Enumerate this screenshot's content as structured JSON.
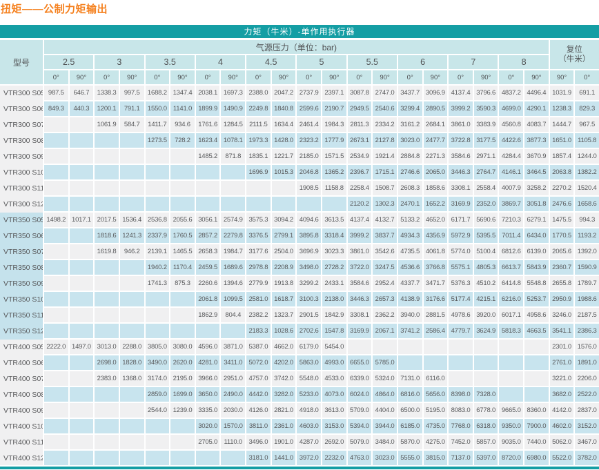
{
  "title": "扭矩——公制力矩输出",
  "colors": {
    "accent_teal": "#149EA4",
    "header_light_teal": "#C8E6E9",
    "stripe_blue": "#C8E4EE",
    "stripe_gray": "#F0F0F1",
    "title_orange": "#F5811F",
    "text_gray": "#57585A"
  },
  "table": {
    "banner": "力矩（牛米）-单作用执行器",
    "model_header": "型号",
    "pressure_header": "气源压力（单位：bar)",
    "reset_header_line1": "复位",
    "reset_header_line2": "（牛米）",
    "pressures": [
      "2.5",
      "3",
      "3.5",
      "4",
      "4.5",
      "5",
      "5.5",
      "6",
      "7",
      "8"
    ],
    "degree_pair": [
      "0°",
      "90°"
    ],
    "reset_degrees": [
      "90°",
      "0°"
    ],
    "rows": [
      {
        "model": "VTR300 S05",
        "values": [
          "987.5",
          "646.7",
          "1338.3",
          "997.5",
          "1688.2",
          "1347.4",
          "2038.1",
          "1697.3",
          "2388.0",
          "2047.2",
          "2737.9",
          "2397.1",
          "3087.8",
          "2747.0",
          "3437.7",
          "3096.9",
          "4137.4",
          "3796.6",
          "4837.2",
          "4496.4",
          "1031.9",
          "691.1"
        ]
      },
      {
        "model": "VTR300 S06",
        "values": [
          "849.3",
          "440.3",
          "1200.1",
          "791.1",
          "1550.0",
          "1141.0",
          "1899.9",
          "1490.9",
          "2249.8",
          "1840.8",
          "2599.6",
          "2190.7",
          "2949.5",
          "2540.6",
          "3299.4",
          "2890.5",
          "3999.2",
          "3590.3",
          "4699.0",
          "4290.1",
          "1238.3",
          "829.3"
        ]
      },
      {
        "model": "VTR300 S07",
        "values": [
          "",
          "",
          "1061.9",
          "584.7",
          "1411.7",
          "934.6",
          "1761.6",
          "1284.5",
          "2111.5",
          "1634.4",
          "2461.4",
          "1984.3",
          "2811.3",
          "2334.2",
          "3161.2",
          "2684.1",
          "3861.0",
          "3383.9",
          "4560.8",
          "4083.7",
          "1444.7",
          "967.5"
        ]
      },
      {
        "model": "VTR300 S08",
        "values": [
          "",
          "",
          "",
          "",
          "1273.5",
          "728.2",
          "1623.4",
          "1078.1",
          "1973.3",
          "1428.0",
          "2323.2",
          "1777.9",
          "2673.1",
          "2127.8",
          "3023.0",
          "2477.7",
          "3722.8",
          "3177.5",
          "4422.6",
          "3877.3",
          "1651.0",
          "1105.8"
        ]
      },
      {
        "model": "VTR300 S09",
        "values": [
          "",
          "",
          "",
          "",
          "",
          "",
          "1485.2",
          "871.8",
          "1835.1",
          "1221.7",
          "2185.0",
          "1571.5",
          "2534.9",
          "1921.4",
          "2884.8",
          "2271.3",
          "3584.6",
          "2971.1",
          "4284.4",
          "3670.9",
          "1857.4",
          "1244.0"
        ]
      },
      {
        "model": "VTR300 S10",
        "values": [
          "",
          "",
          "",
          "",
          "",
          "",
          "",
          "",
          "1696.9",
          "1015.3",
          "2046.8",
          "1365.2",
          "2396.7",
          "1715.1",
          "2746.6",
          "2065.0",
          "3446.3",
          "2764.7",
          "4146.1",
          "3464.5",
          "2063.8",
          "1382.2"
        ]
      },
      {
        "model": "VTR300 S11",
        "values": [
          "",
          "",
          "",
          "",
          "",
          "",
          "",
          "",
          "",
          "",
          "1908.5",
          "1158.8",
          "2258.4",
          "1508.7",
          "2608.3",
          "1858.6",
          "3308.1",
          "2558.4",
          "4007.9",
          "3258.2",
          "2270.2",
          "1520.4"
        ]
      },
      {
        "model": "VTR300 S12",
        "values": [
          "",
          "",
          "",
          "",
          "",
          "",
          "",
          "",
          "",
          "",
          "",
          "",
          "2120.2",
          "1302.3",
          "2470.1",
          "1652.2",
          "3169.9",
          "2352.0",
          "3869.7",
          "3051.8",
          "2476.6",
          "1658.6"
        ]
      },
      {
        "model": "VTR350 S05",
        "values": [
          "1498.2",
          "1017.1",
          "2017.5",
          "1536.4",
          "2536.8",
          "2055.6",
          "3056.1",
          "2574.9",
          "3575.3",
          "3094.2",
          "4094.6",
          "3613.5",
          "4137.4",
          "4132.7",
          "5133.2",
          "4652.0",
          "6171.7",
          "5690.6",
          "7210.3",
          "6279.1",
          "1475.5",
          "994.3"
        ]
      },
      {
        "model": "VTR350 S06",
        "values": [
          "",
          "",
          "1818.6",
          "1241.3",
          "2337.9",
          "1760.5",
          "2857.2",
          "2279.8",
          "3376.5",
          "2799.1",
          "3895.8",
          "3318.4",
          "3999.2",
          "3837.7",
          "4934.3",
          "4356.9",
          "5972.9",
          "5395.5",
          "7011.4",
          "6434.0",
          "1770.5",
          "1193.2"
        ]
      },
      {
        "model": "VTR350 S07",
        "values": [
          "",
          "",
          "1619.8",
          "946.2",
          "2139.1",
          "1465.5",
          "2658.3",
          "1984.7",
          "3177.6",
          "2504.0",
          "3696.9",
          "3023.3",
          "3861.0",
          "3542.6",
          "4735.5",
          "4061.8",
          "5774.0",
          "5100.4",
          "6812.6",
          "6139.0",
          "2065.6",
          "1392.0"
        ]
      },
      {
        "model": "VTR350 S08",
        "values": [
          "",
          "",
          "",
          "",
          "1940.2",
          "1170.4",
          "2459.5",
          "1689.6",
          "2978.8",
          "2208.9",
          "3498.0",
          "2728.2",
          "3722.0",
          "3247.5",
          "4536.6",
          "3766.8",
          "5575.1",
          "4805.3",
          "6613.7",
          "5843.9",
          "2360.7",
          "1590.9"
        ]
      },
      {
        "model": "VTR350 S09",
        "values": [
          "",
          "",
          "",
          "",
          "1741.3",
          "875.3",
          "2260.6",
          "1394.6",
          "2779.9",
          "1913.8",
          "3299.2",
          "2433.1",
          "3584.6",
          "2952.4",
          "4337.7",
          "3471.7",
          "5376.3",
          "4510.2",
          "6414.8",
          "5548.8",
          "2655.8",
          "1789.7"
        ]
      },
      {
        "model": "VTR350 S10",
        "values": [
          "",
          "",
          "",
          "",
          "",
          "",
          "2061.8",
          "1099.5",
          "2581.0",
          "1618.7",
          "3100.3",
          "2138.0",
          "3446.3",
          "2657.3",
          "4138.9",
          "3176.6",
          "5177.4",
          "4215.1",
          "6216.0",
          "5253.7",
          "2950.9",
          "1988.6"
        ]
      },
      {
        "model": "VTR350 S11",
        "values": [
          "",
          "",
          "",
          "",
          "",
          "",
          "1862.9",
          "804.4",
          "2382.2",
          "1323.7",
          "2901.5",
          "1842.9",
          "3308.1",
          "2362.2",
          "3940.0",
          "2881.5",
          "4978.6",
          "3920.0",
          "6017.1",
          "4958.6",
          "3246.0",
          "2187.5"
        ]
      },
      {
        "model": "VTR350 S12",
        "values": [
          "",
          "",
          "",
          "",
          "",
          "",
          "",
          "",
          "2183.3",
          "1028.6",
          "2702.6",
          "1547.8",
          "3169.9",
          "2067.1",
          "3741.2",
          "2586.4",
          "4779.7",
          "3624.9",
          "5818.3",
          "4663.5",
          "3541.1",
          "2386.3"
        ]
      },
      {
        "model": "VTR400 S05",
        "values": [
          "2222.0",
          "1497.0",
          "3013.0",
          "2288.0",
          "3805.0",
          "3080.0",
          "4596.0",
          "3871.0",
          "5387.0",
          "4662.0",
          "6179.0",
          "5454.0",
          "",
          "",
          "",
          "",
          "",
          "",
          "",
          "",
          "2301.0",
          "1576.0"
        ]
      },
      {
        "model": "VTR400 S06",
        "values": [
          "",
          "",
          "2698.0",
          "1828.0",
          "3490.0",
          "2620.0",
          "4281.0",
          "3411.0",
          "5072.0",
          "4202.0",
          "5863.0",
          "4993.0",
          "6655.0",
          "5785.0",
          "",
          "",
          "",
          "",
          "",
          "",
          "2761.0",
          "1891.0"
        ]
      },
      {
        "model": "VTR400 S07",
        "values": [
          "",
          "",
          "2383.0",
          "1368.0",
          "3174.0",
          "2195.0",
          "3966.0",
          "2951.0",
          "4757.0",
          "3742.0",
          "5548.0",
          "4533.0",
          "6339.0",
          "5324.0",
          "7131.0",
          "6116.0",
          "",
          "",
          "",
          "",
          "3221.0",
          "2206.0"
        ]
      },
      {
        "model": "VTR400 S08",
        "values": [
          "",
          "",
          "",
          "",
          "2859.0",
          "1699.0",
          "3650.0",
          "2490.0",
          "4442.0",
          "3282.0",
          "5233.0",
          "4073.0",
          "6024.0",
          "4864.0",
          "6816.0",
          "5656.0",
          "8398.0",
          "7328.0",
          "",
          "",
          "3682.0",
          "2522.0"
        ]
      },
      {
        "model": "VTR400 S09",
        "values": [
          "",
          "",
          "",
          "",
          "2544.0",
          "1239.0",
          "3335.0",
          "2030.0",
          "4126.0",
          "2821.0",
          "4918.0",
          "3613.0",
          "5709.0",
          "4404.0",
          "6500.0",
          "5195.0",
          "8083.0",
          "6778.0",
          "9665.0",
          "8360.0",
          "4142.0",
          "2837.0"
        ]
      },
      {
        "model": "VTR400 S10",
        "values": [
          "",
          "",
          "",
          "",
          "",
          "",
          "3020.0",
          "1570.0",
          "3811.0",
          "2361.0",
          "4603.0",
          "3153.0",
          "5394.0",
          "3944.0",
          "6185.0",
          "4735.0",
          "7768.0",
          "6318.0",
          "9350.0",
          "7900.0",
          "4602.0",
          "3152.0"
        ]
      },
      {
        "model": "VTR400 S11",
        "values": [
          "",
          "",
          "",
          "",
          "",
          "",
          "2705.0",
          "1110.0",
          "3496.0",
          "1901.0",
          "4287.0",
          "2692.0",
          "5079.0",
          "3484.0",
          "5870.0",
          "4275.0",
          "7452.0",
          "5857.0",
          "9035.0",
          "7440.0",
          "5062.0",
          "3467.0"
        ]
      },
      {
        "model": "VTR400 S12",
        "values": [
          "",
          "",
          "",
          "",
          "",
          "",
          "",
          "",
          "3181.0",
          "1441.0",
          "3972.0",
          "2232.0",
          "4763.0",
          "3023.0",
          "5555.0",
          "3815.0",
          "7137.0",
          "5397.0",
          "8720.0",
          "6980.0",
          "5522.0",
          "3782.0"
        ]
      }
    ]
  }
}
